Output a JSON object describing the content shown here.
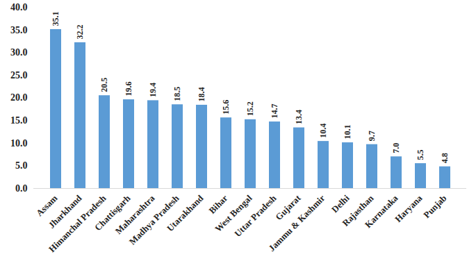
{
  "chart_data": {
    "type": "bar",
    "categories": [
      "Assam",
      "Jharkhand",
      "Himanchal Pradesh",
      "Chattisgarh",
      "Maharashtra",
      "Madhya Pradesh",
      "Utarakhand",
      "Bihar",
      "West Bengal",
      "Uttar Pradesh",
      "Gujarat",
      "Jammu & Kashmir",
      "Delhi",
      "Rajasthan",
      "Karnataka",
      "Haryana",
      "Punjab"
    ],
    "values": [
      35.1,
      32.2,
      20.5,
      19.6,
      19.4,
      18.5,
      18.4,
      15.6,
      15.2,
      14.7,
      13.4,
      10.4,
      10.1,
      9.7,
      7.0,
      5.5,
      4.8
    ],
    "value_labels": [
      "35.1",
      "32.2",
      "20.5",
      "19.6",
      "19.4",
      "18.5",
      "18.4",
      "15.6",
      "15.2",
      "14.7",
      "13.4",
      "10.4",
      "10.1",
      "9.7",
      "7.0",
      "5.5",
      "4.8"
    ],
    "color": "#5b9bd5",
    "ylim": [
      0,
      40
    ],
    "yticks": [
      {
        "value": 0,
        "label": "0.0"
      },
      {
        "value": 5,
        "label": "5.0"
      },
      {
        "value": 10,
        "label": "10.0"
      },
      {
        "value": 15,
        "label": "15.0"
      },
      {
        "value": 20,
        "label": "20.0"
      },
      {
        "value": 25,
        "label": "25.0"
      },
      {
        "value": 30,
        "label": "30.0"
      },
      {
        "value": 35,
        "label": "35.0"
      },
      {
        "value": 40,
        "label": "40.0"
      }
    ],
    "grid": false,
    "data_labels": true
  }
}
